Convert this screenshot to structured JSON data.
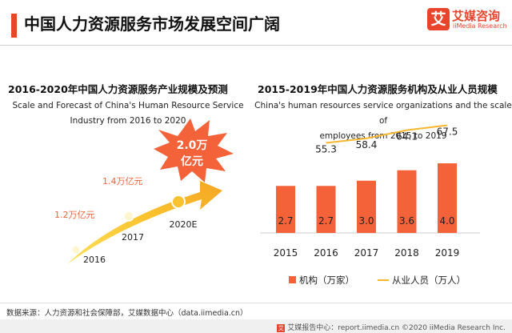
{
  "header": {
    "title": "中国人力资源服务市场发展空间广阔",
    "logo_mark": "艾",
    "logo_cn": "艾媒咨询",
    "logo_en": "iiMedia Research"
  },
  "left_panel": {
    "title": "2016-2020年中国人力资源服务产业规模及预测",
    "subtitle_line1": "Scale and Forecast of China's Human Resource Service",
    "subtitle_line2": "Industry from 2016 to 2020",
    "stages": [
      {
        "year": "2016",
        "value": "1.2万亿元"
      },
      {
        "year": "2017",
        "value": "1.4万亿元"
      },
      {
        "year": "2020E",
        "value_line1": "2.0万",
        "value_line2": "亿元"
      }
    ]
  },
  "right_panel": {
    "title": "2015-2019年中国人力资源服务机构及从业人员规模",
    "subtitle_line1": "China's human resources service organizations and the scale of",
    "subtitle_line2": "employees from 2015 to 2019"
  },
  "chart_data": [
    {
      "type": "bar",
      "title": "2016-2020年中国人力资源服务产业规模及预测",
      "subtitle": "Scale and Forecast of China's Human Resource Service Industry from 2016 to 2020",
      "categories": [
        "2016",
        "2017",
        "2020E"
      ],
      "series": [
        {
          "values": [
            1.2,
            1.4,
            2.0
          ],
          "labels": [
            "1.2万亿元",
            "1.4万亿元",
            "2.0万亿元"
          ]
        }
      ]
    },
    {
      "type": "bar",
      "title": "2015-2019年中国人力资源服务机构及从业人员规模",
      "subtitle": "China's human resources service organizations and the scale of employees from 2015 to 2019",
      "categories": [
        "2015",
        "2016",
        "2017",
        "2018",
        "2019"
      ],
      "series": [
        {
          "name": "机构（万家）",
          "type": "bar",
          "values": [
            2.7,
            2.7,
            3.0,
            3.6,
            4.0
          ],
          "color": "#f4623a"
        },
        {
          "name": "从业人员（万人）",
          "type": "line",
          "values": [
            null,
            55.3,
            58.4,
            64.1,
            67.5
          ],
          "color": "#f7b731"
        }
      ],
      "legend": "bottom"
    }
  ],
  "footer": {
    "source": "数据来源：人力资源和社会保障部，艾媒数据中心（data.iimedia.cn）",
    "site": "艾媒报告中心：report.iimedia.cn ©2020 iiMedia Research Inc."
  },
  "colors": {
    "accent": "#e8452c",
    "bar": "#f4623a",
    "line": "#f7b731"
  }
}
